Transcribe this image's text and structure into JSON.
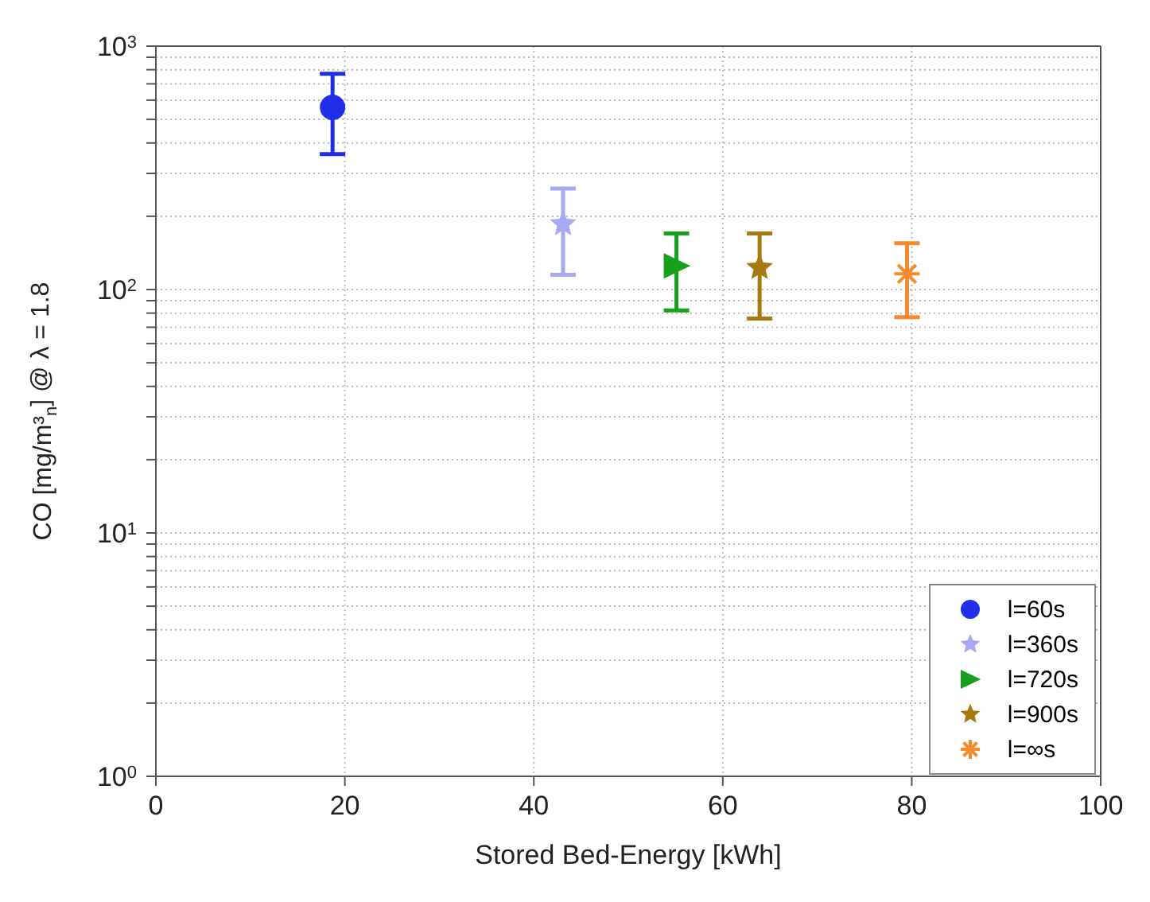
{
  "chart_data": {
    "type": "scatter",
    "xlabel": "Stored Bed-Energy [kWh]",
    "ylabel": "CO [mg/m³$_{n}$] @ λ = 1.8",
    "xlim": [
      0,
      100
    ],
    "xticks": [
      0,
      20,
      40,
      60,
      80,
      100
    ],
    "ylim": [
      1,
      1000
    ],
    "log": "y",
    "yticks": [
      {
        "value": 1,
        "label": "10$^{0}$"
      },
      {
        "value": 2,
        "label": null
      },
      {
        "value": 3,
        "label": null
      },
      {
        "value": 4,
        "label": null
      },
      {
        "value": 5,
        "label": null
      },
      {
        "value": 6,
        "label": null
      },
      {
        "value": 7,
        "label": null
      },
      {
        "value": 8,
        "label": null
      },
      {
        "value": 9,
        "label": null
      },
      {
        "value": 10,
        "label": "10$^{1}$"
      },
      {
        "value": 20,
        "label": null
      },
      {
        "value": 30,
        "label": null
      },
      {
        "value": 40,
        "label": null
      },
      {
        "value": 50,
        "label": null
      },
      {
        "value": 60,
        "label": null
      },
      {
        "value": 70,
        "label": null
      },
      {
        "value": 80,
        "label": null
      },
      {
        "value": 90,
        "label": null
      },
      {
        "value": 100,
        "label": "10$^{2}$"
      },
      {
        "value": 200,
        "label": null
      },
      {
        "value": 300,
        "label": null
      },
      {
        "value": 400,
        "label": null
      },
      {
        "value": 500,
        "label": null
      },
      {
        "value": 600,
        "label": null
      },
      {
        "value": 700,
        "label": null
      },
      {
        "value": 800,
        "label": null
      },
      {
        "value": 900,
        "label": null
      },
      {
        "value": 1000,
        "label": "10$^{3}$"
      }
    ],
    "grid": true,
    "legend": "bottom right",
    "series": [
      {
        "name": "l=60s",
        "color": "#1f2ee8",
        "marker": "circle",
        "x": [
          18.7
        ],
        "values": [
          560
        ],
        "errors": [
          [
            360,
            770
          ]
        ]
      },
      {
        "name": "l=360s",
        "color": "#a9a9f2",
        "marker": "star",
        "x": [
          43.1
        ],
        "values": [
          186
        ],
        "errors": [
          [
            115,
            260
          ]
        ]
      },
      {
        "name": "l=720s",
        "color": "#16a01c",
        "marker": "triangle",
        "x": [
          55.1
        ],
        "values": [
          125
        ],
        "errors": [
          [
            82,
            170
          ]
        ]
      },
      {
        "name": "l=900s",
        "color": "#a8790f",
        "marker": "star",
        "x": [
          63.9
        ],
        "values": [
          123
        ],
        "errors": [
          [
            76,
            170
          ]
        ]
      },
      {
        "name": "l=∞s",
        "color": "#f58a2e",
        "marker": "cross",
        "x": [
          79.5
        ],
        "values": [
          116
        ],
        "errors": [
          [
            77,
            155
          ]
        ]
      }
    ]
  }
}
